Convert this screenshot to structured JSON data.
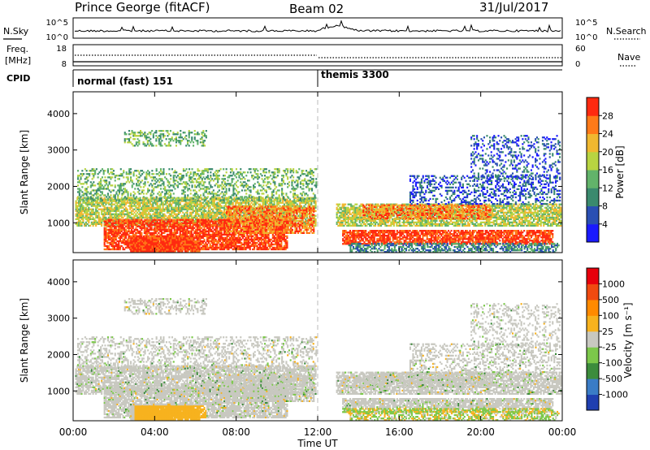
{
  "header": {
    "station": "Prince George (fitACF)",
    "beam": "Beam 02",
    "date": "31/Jul/2017"
  },
  "noise_panel": {
    "left_label": "N.Sky",
    "right_label": "N.Search",
    "left_top": "10^5",
    "left_bottom": "10^0",
    "right_top": "10^5",
    "right_bottom": "10^0"
  },
  "freq_panel": {
    "label_line1": "Freq.",
    "label_line2": "[MHz]",
    "left_top": "18",
    "left_bottom": "8",
    "right_top": "60",
    "right_bottom": "0",
    "right_label": "Nave"
  },
  "cpid_panel": {
    "label": "CPID",
    "mode1": "normal (fast) 151",
    "mode2": "themis 3300"
  },
  "chart_data": [
    {
      "type": "heatmap",
      "title": "",
      "xlabel": "",
      "ylabel": "Slant Range [km]",
      "xlim": [
        0,
        24
      ],
      "ylim": [
        180,
        4600
      ],
      "y_ticks": [
        "1000",
        "2000",
        "3000",
        "4000"
      ],
      "colorbar": {
        "label": "Power [dB]",
        "ticks": [
          "4",
          "8",
          "12",
          "16",
          "20",
          "24",
          "28"
        ],
        "colors": [
          "#1a1aff",
          "#2a4fb3",
          "#3a8a6e",
          "#62b36a",
          "#b8d441",
          "#f0b830",
          "#ff7a18",
          "#ff2a10"
        ]
      }
    },
    {
      "type": "heatmap",
      "title": "",
      "xlabel": "Time UT",
      "ylabel": "Slant Range [km]",
      "xlim": [
        0,
        24
      ],
      "ylim": [
        180,
        4600
      ],
      "y_ticks": [
        "1000",
        "2000",
        "3000",
        "4000"
      ],
      "x_ticks": [
        "00:00",
        "04:00",
        "08:00",
        "12:00",
        "16:00",
        "20:00",
        "00:00"
      ],
      "colorbar": {
        "label": "Velocity [m s⁻¹]",
        "ticks": [
          "1000",
          "500",
          "100",
          "25",
          "-25",
          "-100",
          "-500",
          "-1000"
        ],
        "colors": [
          "#1f3fb0",
          "#3a7cc6",
          "#3c8c3c",
          "#7cc84a",
          "#c8c8c0",
          "#f7b21e",
          "#ff8a00",
          "#f04a10",
          "#e8000c"
        ]
      }
    }
  ]
}
